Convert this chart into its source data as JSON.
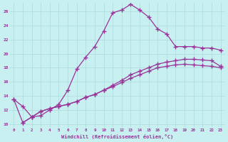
{
  "xlabel": "Windchill (Refroidissement éolien,°C)",
  "bg_color": "#c8f0f0",
  "grid_color": "#b0dede",
  "line_color": "#993399",
  "xlim": [
    -0.5,
    23.5
  ],
  "ylim": [
    9.5,
    27.2
  ],
  "yticks": [
    10,
    12,
    14,
    16,
    18,
    20,
    22,
    24,
    26
  ],
  "xticks": [
    0,
    1,
    2,
    3,
    4,
    5,
    6,
    7,
    8,
    9,
    10,
    11,
    12,
    13,
    14,
    15,
    16,
    17,
    18,
    19,
    20,
    21,
    22,
    23
  ],
  "line1_x": [
    0,
    1,
    2,
    3,
    4,
    5,
    6,
    7,
    8,
    9,
    10,
    11,
    12,
    13,
    14,
    15,
    16,
    17,
    18,
    19,
    20,
    21,
    22,
    23
  ],
  "line1_y": [
    13.5,
    12.5,
    11.0,
    11.2,
    12.0,
    12.8,
    14.8,
    17.8,
    19.5,
    21.0,
    23.2,
    25.8,
    26.2,
    27.0,
    26.2,
    25.2,
    23.5,
    22.8,
    21.0,
    21.0,
    21.0,
    20.8,
    20.8,
    20.5
  ],
  "line2_x": [
    0,
    1,
    2,
    3,
    4,
    5,
    6,
    7,
    8,
    9,
    10,
    11,
    12,
    13,
    14,
    15,
    16,
    17,
    18,
    19,
    20,
    21,
    22,
    23
  ],
  "line2_y": [
    13.5,
    10.2,
    11.0,
    11.8,
    12.2,
    12.5,
    12.8,
    13.2,
    13.8,
    14.2,
    14.8,
    15.3,
    15.9,
    16.5,
    17.0,
    17.5,
    18.0,
    18.2,
    18.4,
    18.5,
    18.4,
    18.3,
    18.2,
    18.0
  ],
  "line3_x": [
    1,
    2,
    3,
    4,
    5,
    6,
    7,
    8,
    9,
    10,
    11,
    12,
    13,
    14,
    15,
    16,
    17,
    18,
    19,
    20,
    21,
    22,
    23
  ],
  "line3_y": [
    10.2,
    11.0,
    11.8,
    12.2,
    12.5,
    12.8,
    13.2,
    13.8,
    14.2,
    14.8,
    15.5,
    16.2,
    17.0,
    17.5,
    18.0,
    18.5,
    18.8,
    19.0,
    19.2,
    19.2,
    19.1,
    19.0,
    18.2
  ]
}
